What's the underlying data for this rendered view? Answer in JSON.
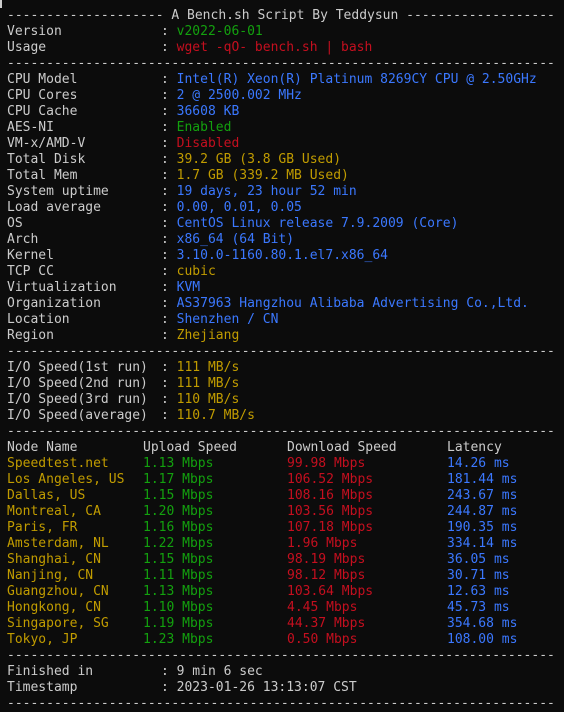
{
  "header": {
    "banner": "-------------------- A Bench.sh Script By Teddysun -------------------",
    "version_label": "Version",
    "version_value": "v2022-06-01",
    "usage_label": "Usage",
    "usage_value": "wget -qO- bench.sh | bash"
  },
  "separator": "----------------------------------------------------------------------",
  "sysinfo": [
    {
      "label": "CPU Model",
      "value": "Intel(R) Xeon(R) Platinum 8269CY CPU @ 2.50GHz",
      "color": "blue"
    },
    {
      "label": "CPU Cores",
      "value": "2 @ 2500.002 MHz",
      "color": "blue"
    },
    {
      "label": "CPU Cache",
      "value": "36608 KB",
      "color": "blue"
    },
    {
      "label": "AES-NI",
      "value": "Enabled",
      "color": "green"
    },
    {
      "label": "VM-x/AMD-V",
      "value": "Disabled",
      "color": "red"
    },
    {
      "label": "Total Disk",
      "value": "39.2 GB (3.8 GB Used)",
      "color": "yellow"
    },
    {
      "label": "Total Mem",
      "value": "1.7 GB (339.2 MB Used)",
      "color": "yellow"
    },
    {
      "label": "System uptime",
      "value": "19 days, 23 hour 52 min",
      "color": "blue"
    },
    {
      "label": "Load average",
      "value": "0.00, 0.01, 0.05",
      "color": "blue"
    },
    {
      "label": "OS",
      "value": "CentOS Linux release 7.9.2009 (Core)",
      "color": "blue"
    },
    {
      "label": "Arch",
      "value": "x86_64 (64 Bit)",
      "color": "blue"
    },
    {
      "label": "Kernel",
      "value": "3.10.0-1160.80.1.el7.x86_64",
      "color": "blue"
    },
    {
      "label": "TCP CC",
      "value": "cubic",
      "color": "yellow"
    },
    {
      "label": "Virtualization",
      "value": "KVM",
      "color": "blue"
    },
    {
      "label": "Organization",
      "value": "AS37963 Hangzhou Alibaba Advertising Co.,Ltd.",
      "color": "blue"
    },
    {
      "label": "Location",
      "value": "Shenzhen / CN",
      "color": "blue"
    },
    {
      "label": "Region",
      "value": "Zhejiang",
      "color": "yellow"
    }
  ],
  "io": [
    {
      "label": "I/O Speed(1st run)",
      "value": "111 MB/s"
    },
    {
      "label": "I/O Speed(2nd run)",
      "value": "111 MB/s"
    },
    {
      "label": "I/O Speed(3rd run)",
      "value": "110 MB/s"
    },
    {
      "label": "I/O Speed(average)",
      "value": "110.7 MB/s"
    }
  ],
  "speedtest": {
    "headers": [
      "Node Name",
      "Upload Speed",
      "Download Speed",
      "Latency"
    ],
    "rows": [
      [
        "Speedtest.net",
        "1.13 Mbps",
        "99.98 Mbps",
        "14.26 ms"
      ],
      [
        "Los Angeles, US",
        "1.17 Mbps",
        "106.52 Mbps",
        "181.44 ms"
      ],
      [
        "Dallas, US",
        "1.15 Mbps",
        "108.16 Mbps",
        "243.67 ms"
      ],
      [
        "Montreal, CA",
        "1.20 Mbps",
        "103.56 Mbps",
        "244.87 ms"
      ],
      [
        "Paris, FR",
        "1.16 Mbps",
        "107.18 Mbps",
        "190.35 ms"
      ],
      [
        "Amsterdam, NL",
        "1.22 Mbps",
        "1.96 Mbps",
        "334.14 ms"
      ],
      [
        "Shanghai, CN",
        "1.15 Mbps",
        "98.19 Mbps",
        "36.05 ms"
      ],
      [
        "Nanjing, CN",
        "1.11 Mbps",
        "98.12 Mbps",
        "30.71 ms"
      ],
      [
        "Guangzhou, CN",
        "1.13 Mbps",
        "103.64 Mbps",
        "12.63 ms"
      ],
      [
        "Hongkong, CN",
        "1.10 Mbps",
        "4.45 Mbps",
        "45.73 ms"
      ],
      [
        "Singapore, SG",
        "1.19 Mbps",
        "44.37 Mbps",
        "354.68 ms"
      ],
      [
        "Tokyo, JP",
        "1.23 Mbps",
        "0.50 Mbps",
        "108.00 ms"
      ]
    ]
  },
  "footer": {
    "finished_label": "Finished in",
    "finished_value": "9 min 6 sec",
    "timestamp_label": "Timestamp",
    "timestamp_value": "2023-01-26 13:13:07 CST"
  },
  "colors": {
    "background": "#0c0c0c",
    "text": "#cccccc",
    "green": "#13a10e",
    "red": "#c50f1f",
    "blue": "#3b78ff",
    "yellow": "#c19c00"
  }
}
